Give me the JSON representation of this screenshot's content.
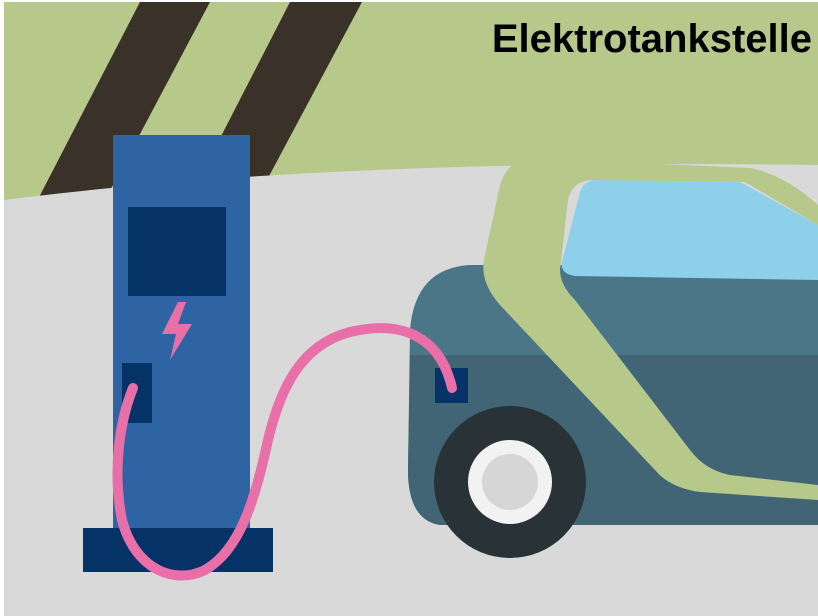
{
  "title": "Elektrotankstelle"
}
